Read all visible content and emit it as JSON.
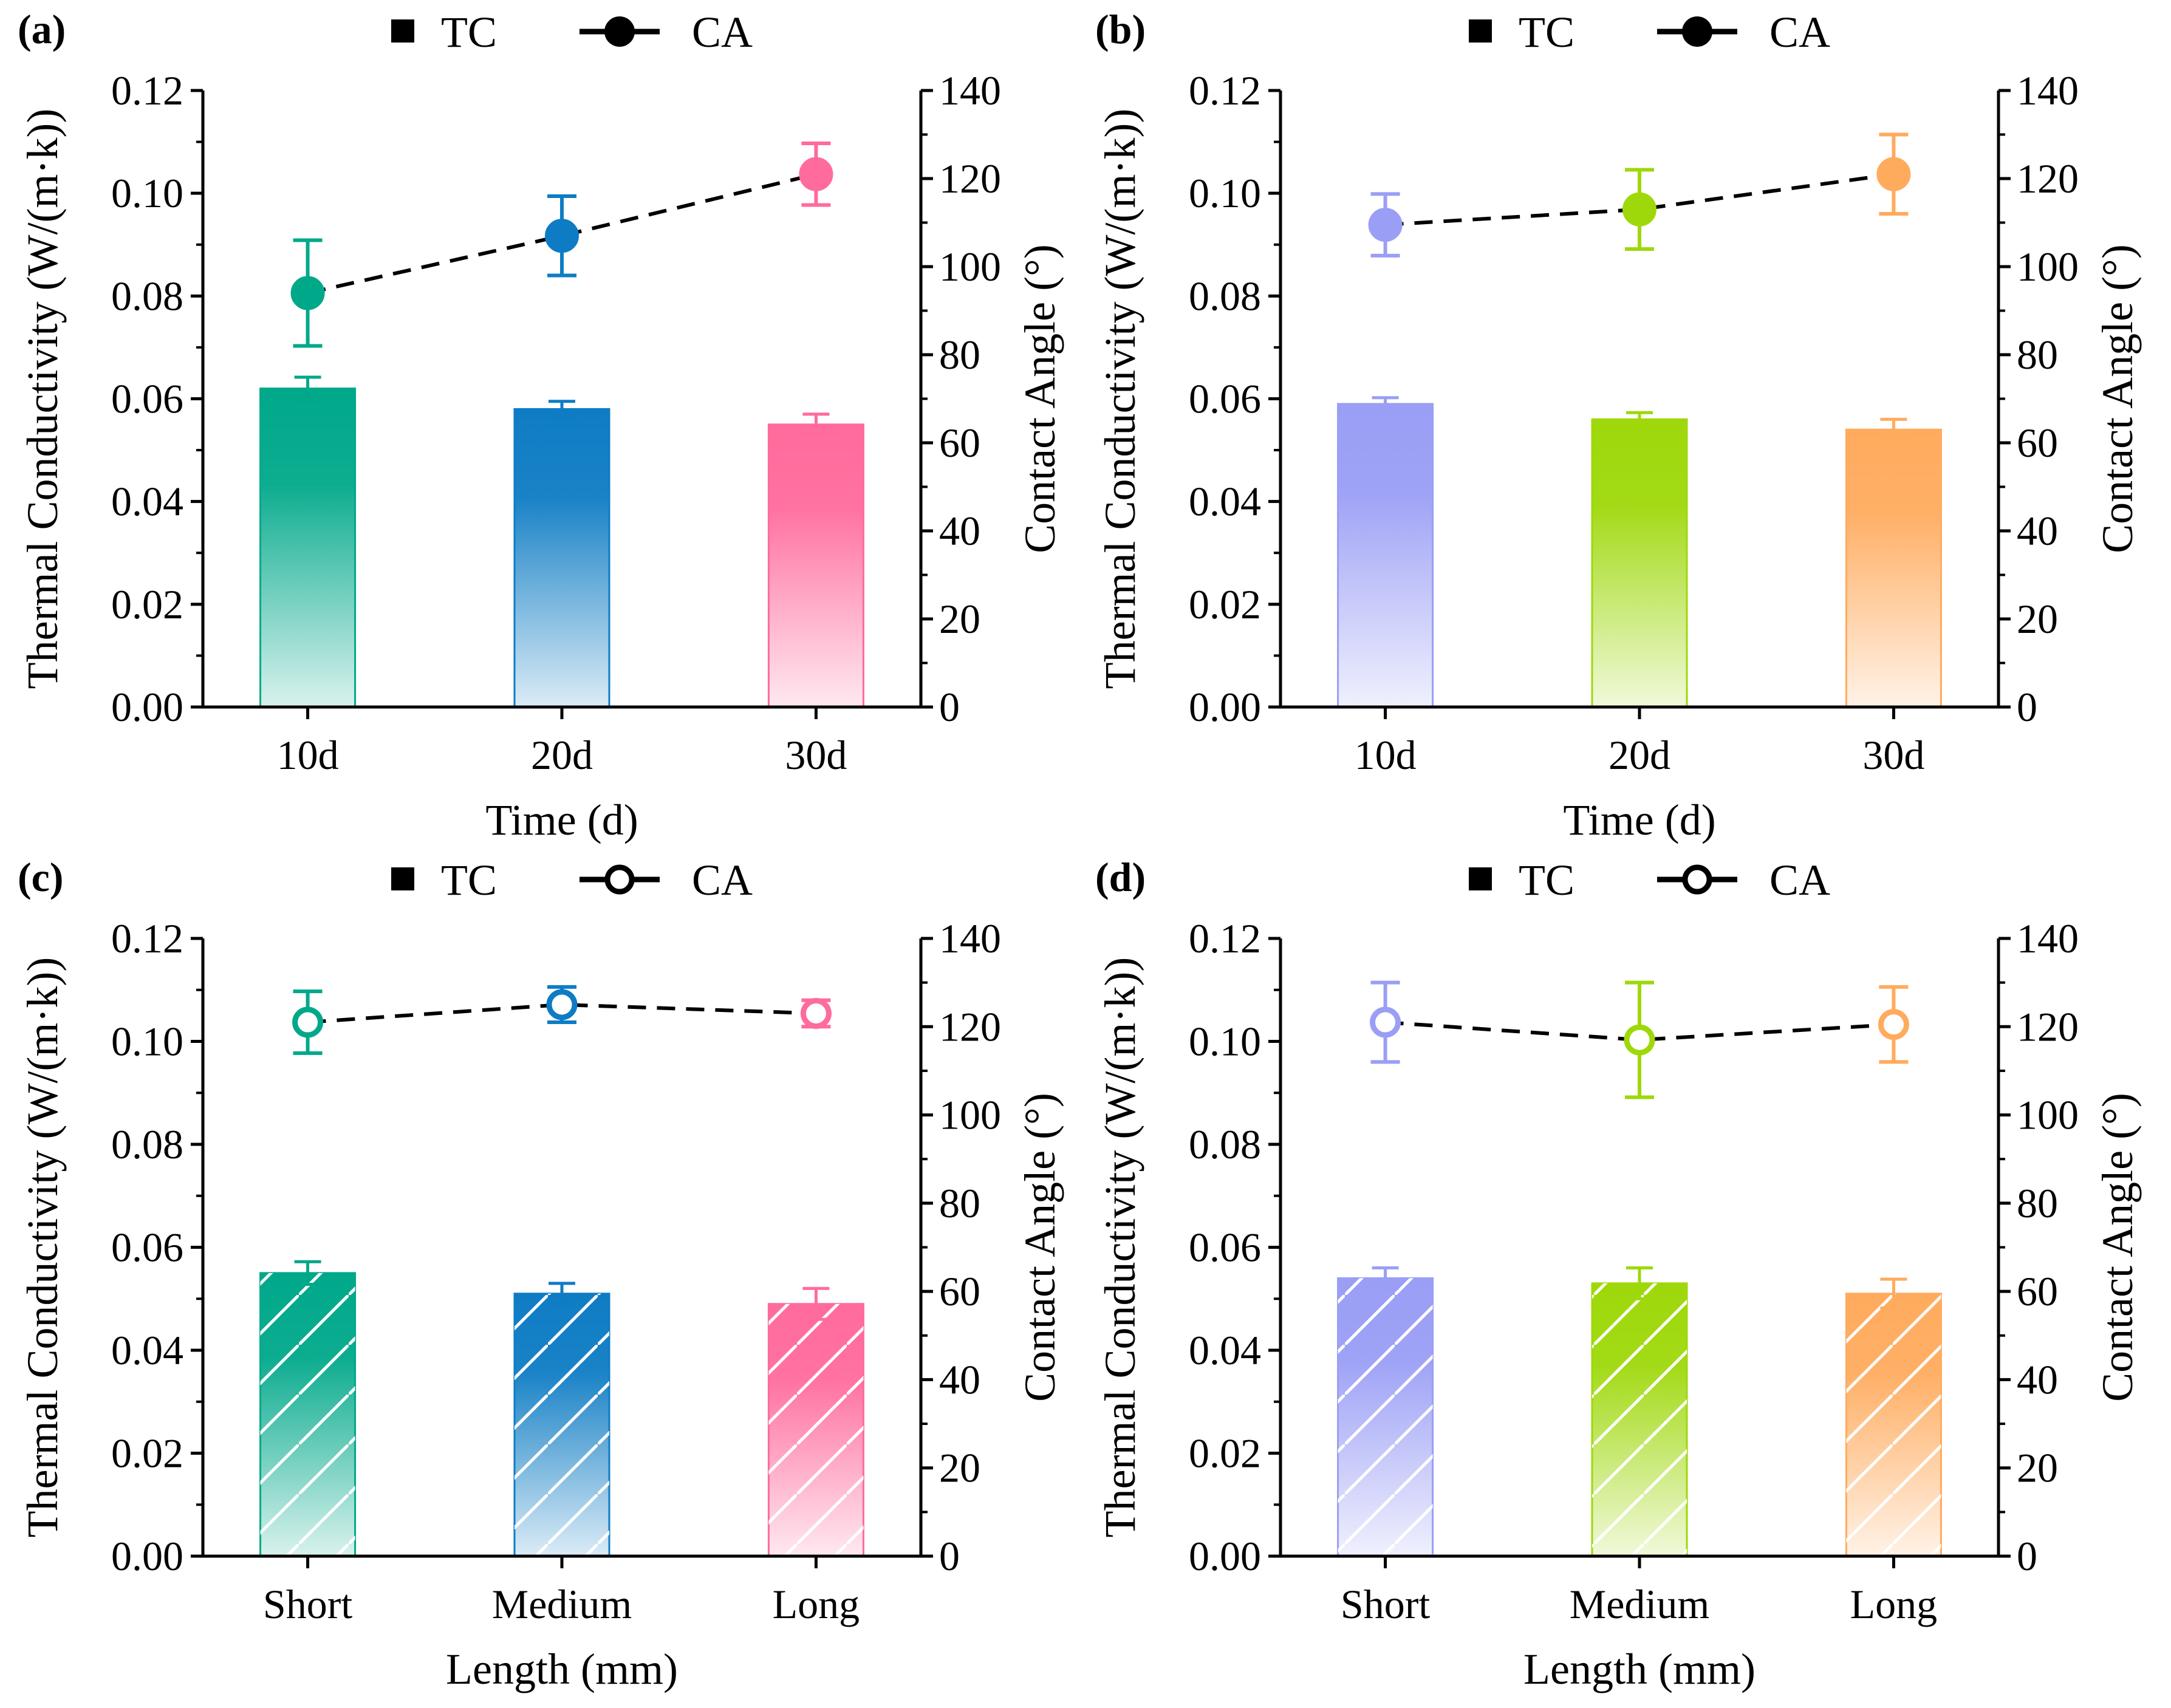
{
  "figure": {
    "legend": {
      "tc_label": "TC",
      "ca_label": "CA"
    },
    "axes_labels": {
      "left": "Thermal Conductivity (W/(m·k))",
      "right": "Contact Angle (°)"
    }
  },
  "chart_data": [
    {
      "panel": "(a)",
      "type": "bar",
      "xlabel": "Time (d)",
      "ylabel": "Thermal Conductivity (W/(m·k))",
      "ylabel_right": "Contact Angle (°)",
      "categories": [
        "10d",
        "20d",
        "30d"
      ],
      "ylim": [
        0,
        0.12
      ],
      "yticks": [
        "0.00",
        "0.02",
        "0.04",
        "0.06",
        "0.08",
        "0.10",
        "0.12"
      ],
      "y2lim": [
        0,
        140
      ],
      "y2ticks": [
        "0",
        "20",
        "40",
        "60",
        "80",
        "100",
        "120",
        "140"
      ],
      "marker": "filled",
      "hatched": false,
      "colors": [
        "#00a88a",
        "#0e7cc4",
        "#ff6b9c"
      ],
      "series": [
        {
          "name": "TC",
          "values": [
            0.062,
            0.058,
            0.055
          ],
          "errors": [
            0.0022,
            0.0015,
            0.002
          ]
        },
        {
          "name": "CA",
          "values": [
            94,
            107,
            121
          ],
          "errors": [
            12,
            9,
            7
          ]
        }
      ]
    },
    {
      "panel": "(b)",
      "type": "bar",
      "xlabel": "Time (d)",
      "ylabel": "Thermal Conductivity (W/(m·k))",
      "ylabel_right": "Contact Angle (°)",
      "categories": [
        "10d",
        "20d",
        "30d"
      ],
      "ylim": [
        0,
        0.12
      ],
      "yticks": [
        "0.00",
        "0.02",
        "0.04",
        "0.06",
        "0.08",
        "0.10",
        "0.12"
      ],
      "y2lim": [
        0,
        140
      ],
      "y2ticks": [
        "0",
        "20",
        "40",
        "60",
        "80",
        "100",
        "120",
        "140"
      ],
      "marker": "filled",
      "hatched": false,
      "colors": [
        "#9a9ef5",
        "#9ed80a",
        "#ffab5e"
      ],
      "series": [
        {
          "name": "TC",
          "values": [
            0.059,
            0.056,
            0.054
          ],
          "errors": [
            0.0012,
            0.0013,
            0.002
          ]
        },
        {
          "name": "CA",
          "values": [
            109.5,
            113,
            121
          ],
          "errors": [
            7,
            9,
            9
          ]
        }
      ]
    },
    {
      "panel": "(c)",
      "type": "bar",
      "xlabel": "Length (mm)",
      "ylabel": "Thermal Conductivity (W/(m·k))",
      "ylabel_right": "Contact Angle (°)",
      "categories": [
        "Short",
        "Medium",
        "Long"
      ],
      "ylim": [
        0,
        0.12
      ],
      "yticks": [
        "0.00",
        "0.02",
        "0.04",
        "0.06",
        "0.08",
        "0.10",
        "0.12"
      ],
      "y2lim": [
        0,
        140
      ],
      "y2ticks": [
        "0",
        "20",
        "40",
        "60",
        "80",
        "100",
        "120",
        "140"
      ],
      "marker": "hollow",
      "hatched": true,
      "colors": [
        "#00a88a",
        "#0e7cc4",
        "#ff6b9c"
      ],
      "series": [
        {
          "name": "TC",
          "values": [
            0.055,
            0.051,
            0.049
          ],
          "errors": [
            0.0022,
            0.002,
            0.003
          ]
        },
        {
          "name": "CA",
          "values": [
            121,
            125,
            123
          ],
          "errors": [
            7,
            4,
            3
          ]
        }
      ]
    },
    {
      "panel": "(d)",
      "type": "bar",
      "xlabel": "Length (mm)",
      "ylabel": "Thermal Conductivity (W/(m·k))",
      "ylabel_right": "Contact Angle (°)",
      "categories": [
        "Short",
        "Medium",
        "Long"
      ],
      "ylim": [
        0,
        0.12
      ],
      "yticks": [
        "0.00",
        "0.02",
        "0.04",
        "0.06",
        "0.08",
        "0.10",
        "0.12"
      ],
      "y2lim": [
        0,
        140
      ],
      "y2ticks": [
        "0",
        "20",
        "40",
        "60",
        "80",
        "100",
        "120",
        "140"
      ],
      "marker": "hollow",
      "hatched": true,
      "colors": [
        "#9a9ef5",
        "#9ed80a",
        "#ffab5e"
      ],
      "series": [
        {
          "name": "TC",
          "values": [
            0.054,
            0.053,
            0.051
          ],
          "errors": [
            0.002,
            0.003,
            0.0028
          ]
        },
        {
          "name": "CA",
          "values": [
            121,
            117,
            120.5
          ],
          "errors": [
            9,
            13,
            8.5
          ]
        }
      ]
    }
  ]
}
